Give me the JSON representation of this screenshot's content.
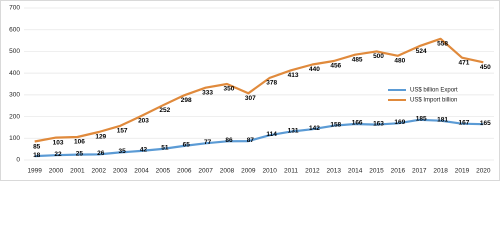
{
  "chart_data": {
    "type": "line",
    "categories": [
      "1999",
      "2000",
      "2001",
      "2002",
      "2003",
      "2004",
      "2005",
      "2006",
      "2007",
      "2008",
      "2009",
      "2010",
      "2011",
      "2012",
      "2013",
      "2014",
      "2015",
      "2016",
      "2017",
      "2018",
      "2019",
      "2020"
    ],
    "series": [
      {
        "name": "US$ billion Export",
        "color": "#5b9bd5",
        "values": [
          18,
          22,
          25,
          26,
          35,
          42,
          51,
          65,
          77,
          86,
          87,
          114,
          131,
          142,
          158,
          166,
          163,
          169,
          185,
          181,
          167,
          165
        ]
      },
      {
        "name": "US$ Import billion",
        "color": "#e08a3c",
        "values": [
          85,
          103,
          106,
          129,
          157,
          203,
          252,
          298,
          333,
          350,
          307,
          378,
          413,
          440,
          456,
          485,
          500,
          480,
          524,
          558,
          471,
          450
        ]
      }
    ],
    "ylim": [
      0,
      700
    ],
    "yticks": [
      0,
      100,
      200,
      300,
      400,
      500,
      600,
      700
    ],
    "grid": true,
    "legend": "right"
  }
}
